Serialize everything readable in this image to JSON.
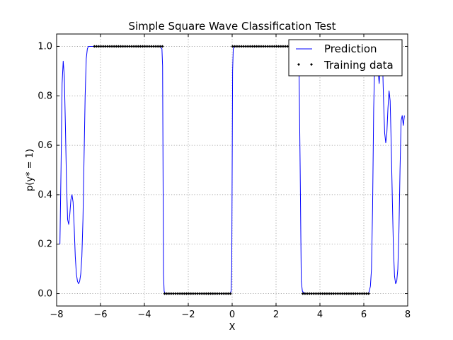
{
  "chart_data": {
    "type": "line",
    "title": "Simple Square Wave Classification Test",
    "xlabel": "X",
    "ylabel": "p(y* = 1)",
    "xlim": [
      -8,
      8
    ],
    "ylim": [
      -0.05,
      1.05
    ],
    "xticks": [
      -8,
      -6,
      -4,
      -2,
      0,
      2,
      4,
      6,
      8
    ],
    "xtick_labels": [
      "−8",
      "−6",
      "−4",
      "−2",
      "0",
      "2",
      "4",
      "6",
      "8"
    ],
    "yticks": [
      0.0,
      0.2,
      0.4,
      0.6,
      0.8,
      1.0
    ],
    "ytick_labels": [
      "0.0",
      "0.2",
      "0.4",
      "0.6",
      "0.8",
      "1.0"
    ],
    "grid": true,
    "legend_position": "top-right",
    "series": [
      {
        "name": "Prediction",
        "kind": "line",
        "color": "#0000ff",
        "x": [
          -7.85,
          -7.8,
          -7.75,
          -7.7,
          -7.65,
          -7.6,
          -7.55,
          -7.5,
          -7.45,
          -7.4,
          -7.35,
          -7.3,
          -7.25,
          -7.2,
          -7.15,
          -7.1,
          -7.05,
          -7.0,
          -6.95,
          -6.9,
          -6.85,
          -6.8,
          -6.75,
          -6.7,
          -6.65,
          -6.6,
          -6.55,
          -6.5,
          -6.45,
          -6.4,
          -6.35,
          -6.3,
          -6.25,
          -6.2,
          -6.0,
          -5.0,
          -4.0,
          -3.3,
          -3.2,
          -3.17,
          -3.15,
          -3.13,
          -3.1,
          -3.05,
          -3.0,
          -2.0,
          -1.0,
          -0.1,
          -0.05,
          -0.02,
          0.0,
          0.02,
          0.05,
          0.1,
          0.2,
          1.0,
          2.0,
          2.8,
          2.95,
          3.0,
          3.02,
          3.05,
          3.1,
          3.15,
          3.2,
          3.3,
          4.0,
          5.0,
          6.0,
          6.2,
          6.25,
          6.3,
          6.35,
          6.4,
          6.45,
          6.5,
          6.55,
          6.6,
          6.65,
          6.7,
          6.75,
          6.8,
          6.85,
          6.9,
          6.95,
          7.0,
          7.05,
          7.1,
          7.15,
          7.2,
          7.25,
          7.3,
          7.35,
          7.4,
          7.45,
          7.5,
          7.55,
          7.6,
          7.65,
          7.7,
          7.75,
          7.8,
          7.85
        ],
        "y": [
          0.2,
          0.5,
          0.85,
          0.94,
          0.88,
          0.68,
          0.45,
          0.3,
          0.28,
          0.32,
          0.38,
          0.4,
          0.37,
          0.27,
          0.15,
          0.08,
          0.05,
          0.04,
          0.05,
          0.08,
          0.15,
          0.3,
          0.55,
          0.8,
          0.95,
          0.99,
          1.0,
          1.0,
          1.0,
          1.0,
          1.0,
          1.0,
          1.0,
          1.0,
          1.0,
          1.0,
          1.0,
          1.0,
          0.99,
          0.92,
          0.5,
          0.08,
          0.01,
          0.0,
          0.0,
          0.0,
          0.0,
          0.0,
          0.01,
          0.1,
          0.5,
          0.9,
          0.99,
          1.0,
          1.0,
          1.0,
          1.0,
          1.0,
          1.0,
          0.99,
          0.97,
          0.9,
          0.5,
          0.05,
          0.01,
          0.0,
          0.0,
          0.0,
          0.0,
          0.0,
          0.01,
          0.03,
          0.1,
          0.35,
          0.75,
          0.95,
          1.0,
          0.98,
          0.9,
          0.85,
          0.92,
          1.0,
          0.95,
          0.78,
          0.65,
          0.61,
          0.65,
          0.75,
          0.82,
          0.78,
          0.6,
          0.38,
          0.18,
          0.07,
          0.04,
          0.05,
          0.1,
          0.25,
          0.5,
          0.7,
          0.72,
          0.68,
          0.72
        ]
      },
      {
        "name": "Training data",
        "kind": "scatter",
        "color": "#000000",
        "x": [
          -6.28,
          -6.18,
          -6.08,
          -5.98,
          -5.88,
          -5.78,
          -5.68,
          -5.58,
          -5.48,
          -5.38,
          -5.28,
          -5.18,
          -5.08,
          -4.98,
          -4.88,
          -4.78,
          -4.68,
          -4.58,
          -4.48,
          -4.38,
          -4.28,
          -4.18,
          -4.08,
          -3.98,
          -3.88,
          -3.78,
          -3.68,
          -3.58,
          -3.48,
          -3.38,
          -3.28,
          -3.18,
          -3.08,
          -2.98,
          -2.88,
          -2.78,
          -2.68,
          -2.58,
          -2.48,
          -2.38,
          -2.28,
          -2.18,
          -2.08,
          -1.98,
          -1.88,
          -1.78,
          -1.68,
          -1.58,
          -1.48,
          -1.38,
          -1.28,
          -1.18,
          -1.08,
          -0.98,
          -0.88,
          -0.78,
          -0.68,
          -0.58,
          -0.48,
          -0.38,
          -0.28,
          -0.18,
          -0.08,
          0.02,
          0.12,
          0.22,
          0.32,
          0.42,
          0.52,
          0.62,
          0.72,
          0.82,
          0.92,
          1.02,
          1.12,
          1.22,
          1.32,
          1.42,
          1.52,
          1.62,
          1.72,
          1.82,
          1.92,
          2.02,
          2.12,
          2.22,
          2.32,
          2.42,
          2.52,
          2.62,
          2.72,
          2.82,
          2.92,
          3.02,
          3.12,
          3.22,
          3.32,
          3.42,
          3.52,
          3.62,
          3.72,
          3.82,
          3.92,
          4.02,
          4.12,
          4.22,
          4.32,
          4.42,
          4.52,
          4.62,
          4.72,
          4.82,
          4.92,
          5.02,
          5.12,
          5.22,
          5.32,
          5.42,
          5.52,
          5.62,
          5.72,
          5.82,
          5.92,
          6.02,
          6.12,
          6.22
        ],
        "y": [
          1,
          1,
          1,
          1,
          1,
          1,
          1,
          1,
          1,
          1,
          1,
          1,
          1,
          1,
          1,
          1,
          1,
          1,
          1,
          1,
          1,
          1,
          1,
          1,
          1,
          1,
          1,
          1,
          1,
          1,
          1,
          1,
          0,
          0,
          0,
          0,
          0,
          0,
          0,
          0,
          0,
          0,
          0,
          0,
          0,
          0,
          0,
          0,
          0,
          0,
          0,
          0,
          0,
          0,
          0,
          0,
          0,
          0,
          0,
          0,
          0,
          0,
          0,
          1,
          1,
          1,
          1,
          1,
          1,
          1,
          1,
          1,
          1,
          1,
          1,
          1,
          1,
          1,
          1,
          1,
          1,
          1,
          1,
          1,
          1,
          1,
          1,
          1,
          1,
          1,
          1,
          1,
          1,
          1,
          1,
          0,
          0,
          0,
          0,
          0,
          0,
          0,
          0,
          0,
          0,
          0,
          0,
          0,
          0,
          0,
          0,
          0,
          0,
          0,
          0,
          0,
          0,
          0,
          0,
          0,
          0,
          0,
          0,
          0,
          0,
          0
        ]
      }
    ]
  }
}
